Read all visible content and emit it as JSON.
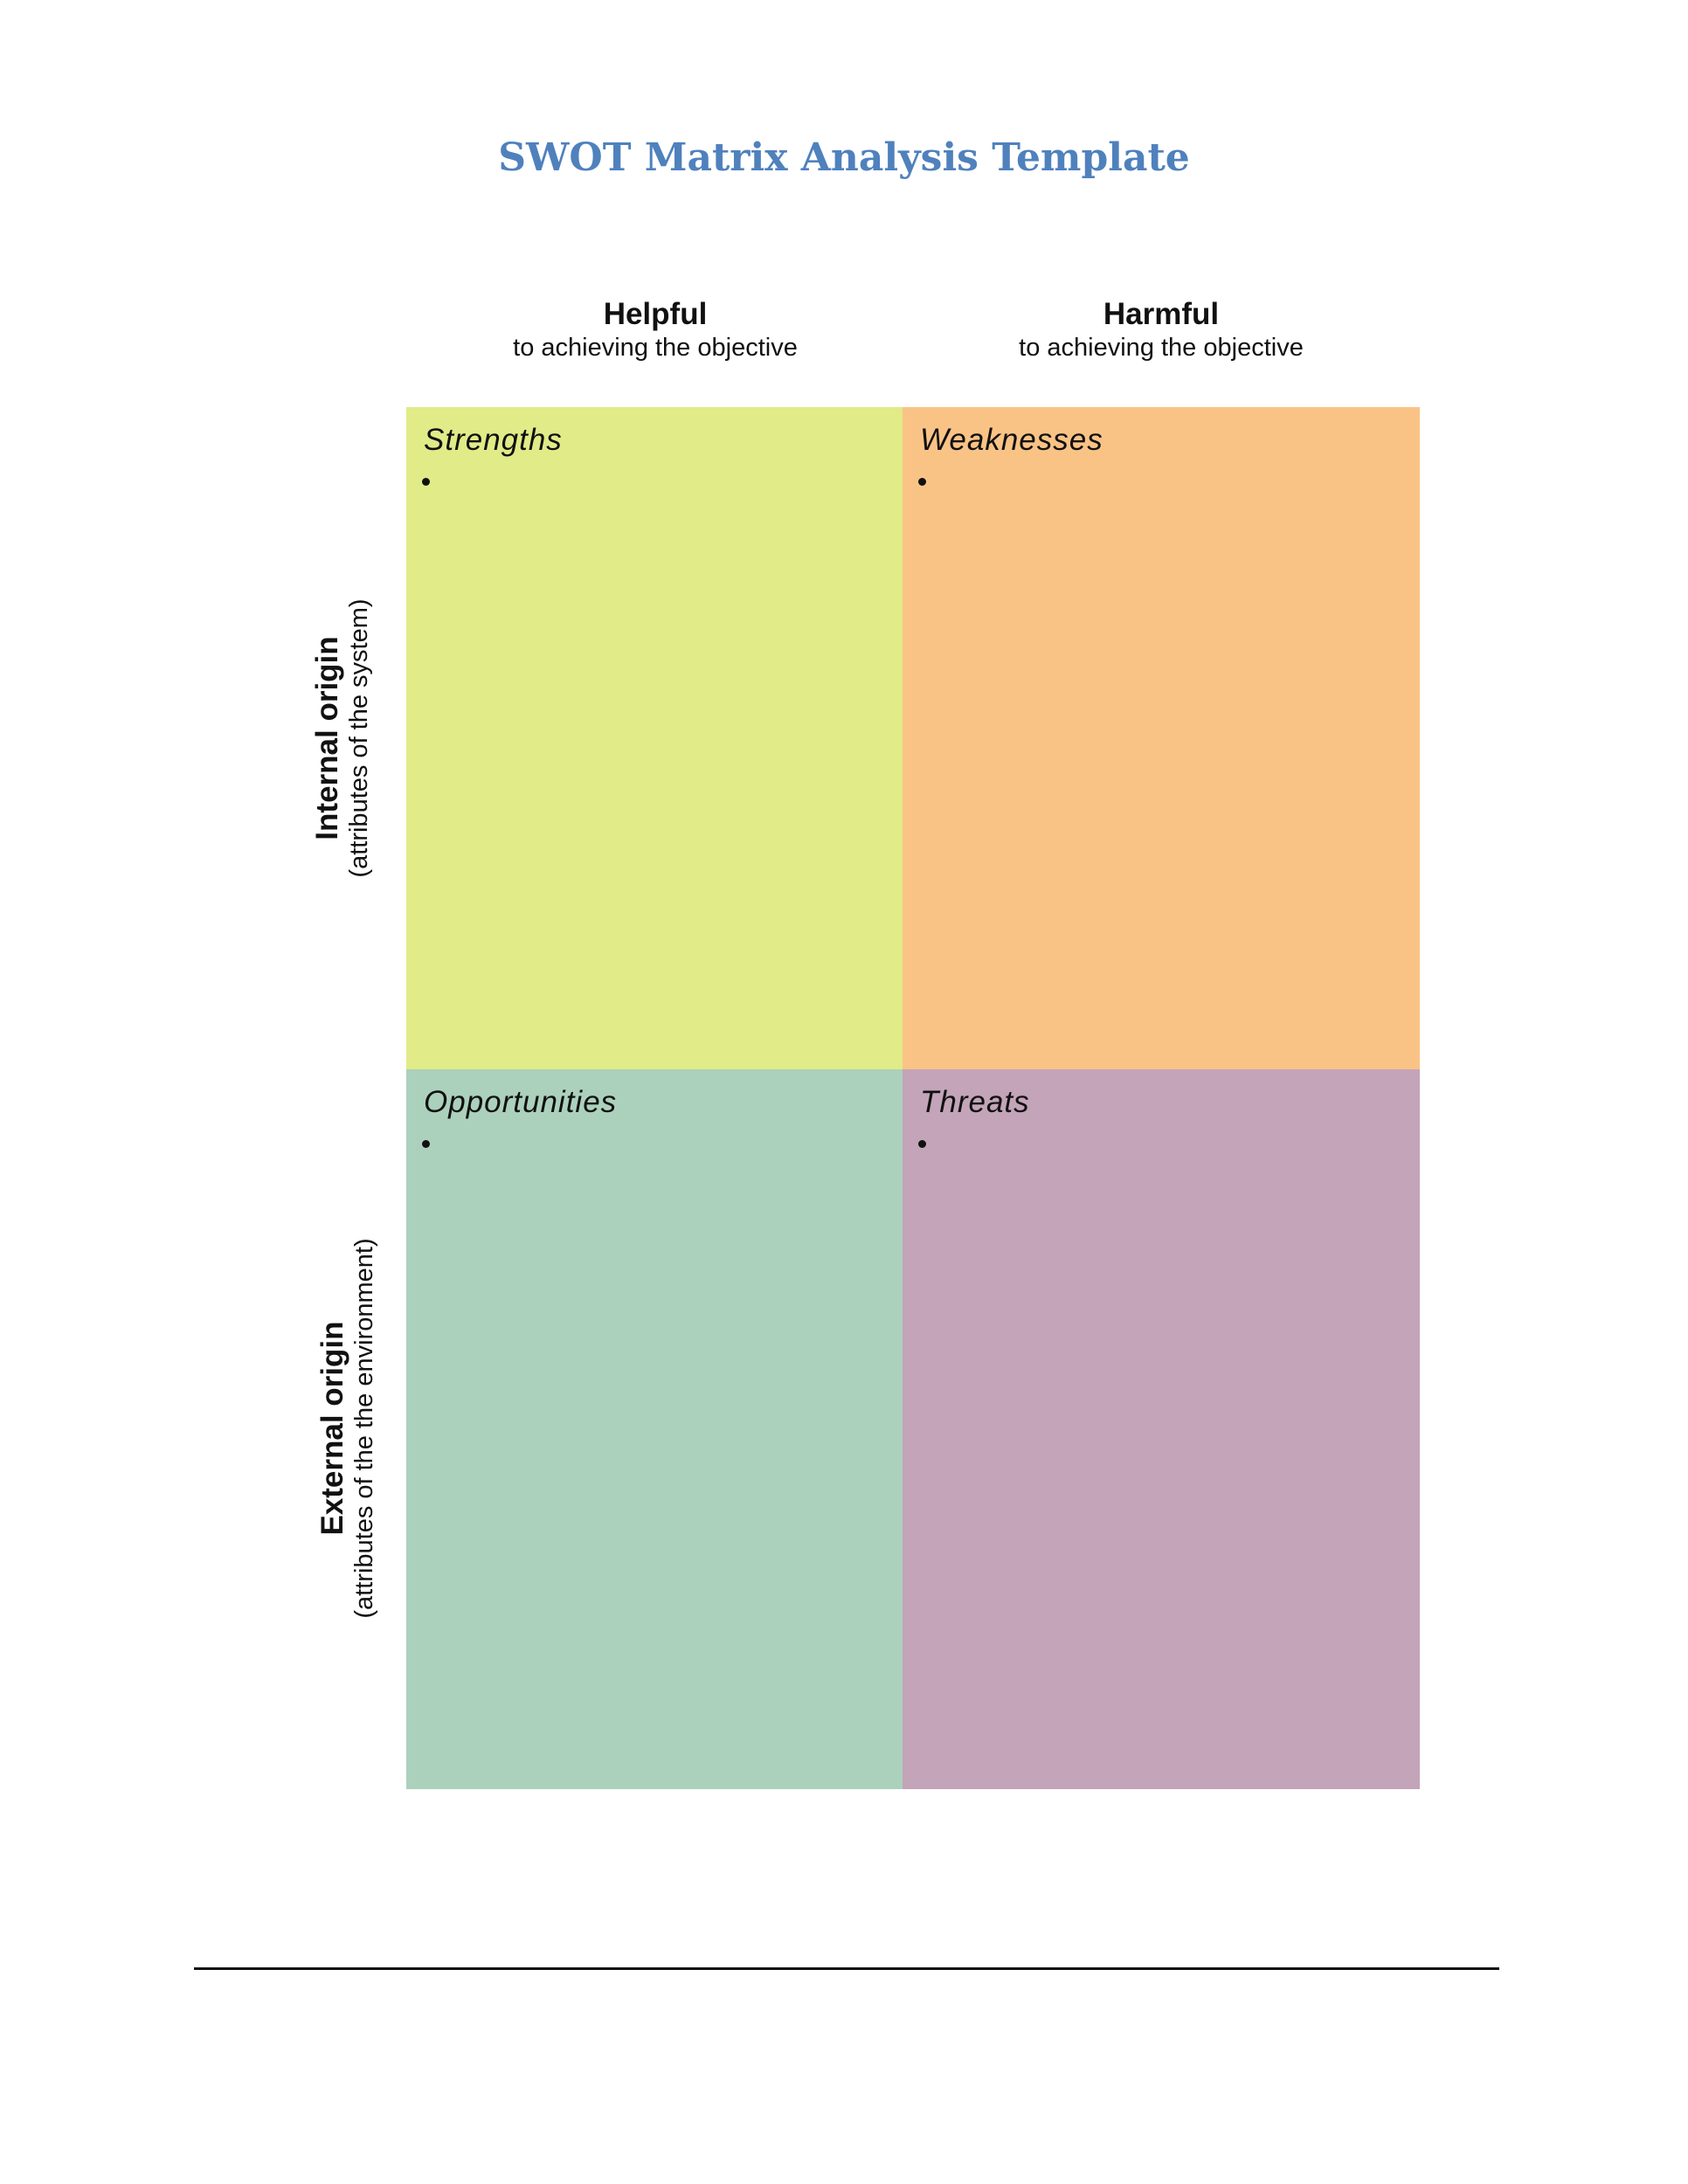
{
  "document": {
    "title": "SWOT Matrix Analysis Template",
    "columns": {
      "helpful": {
        "label": "Helpful",
        "sublabel": "to achieving the objective"
      },
      "harmful": {
        "label": "Harmful",
        "sublabel": "to achieving the objective"
      }
    },
    "rows": {
      "internal": {
        "label": "Internal origin",
        "sublabel": "(attributes of the system)"
      },
      "external": {
        "label": "External origin",
        "sublabel": "(attributes of the the environment)"
      }
    },
    "quadrants": {
      "strengths": {
        "title": "Strengths",
        "color": "#e1eb87"
      },
      "weaknesses": {
        "title": "Weaknesses",
        "color": "#fac386"
      },
      "opportunities": {
        "title": "Opportunities",
        "color": "#abd1bc"
      },
      "threats": {
        "title": "Threats",
        "color": "#c3a4b8"
      }
    },
    "title_color": "#4f81bd"
  }
}
